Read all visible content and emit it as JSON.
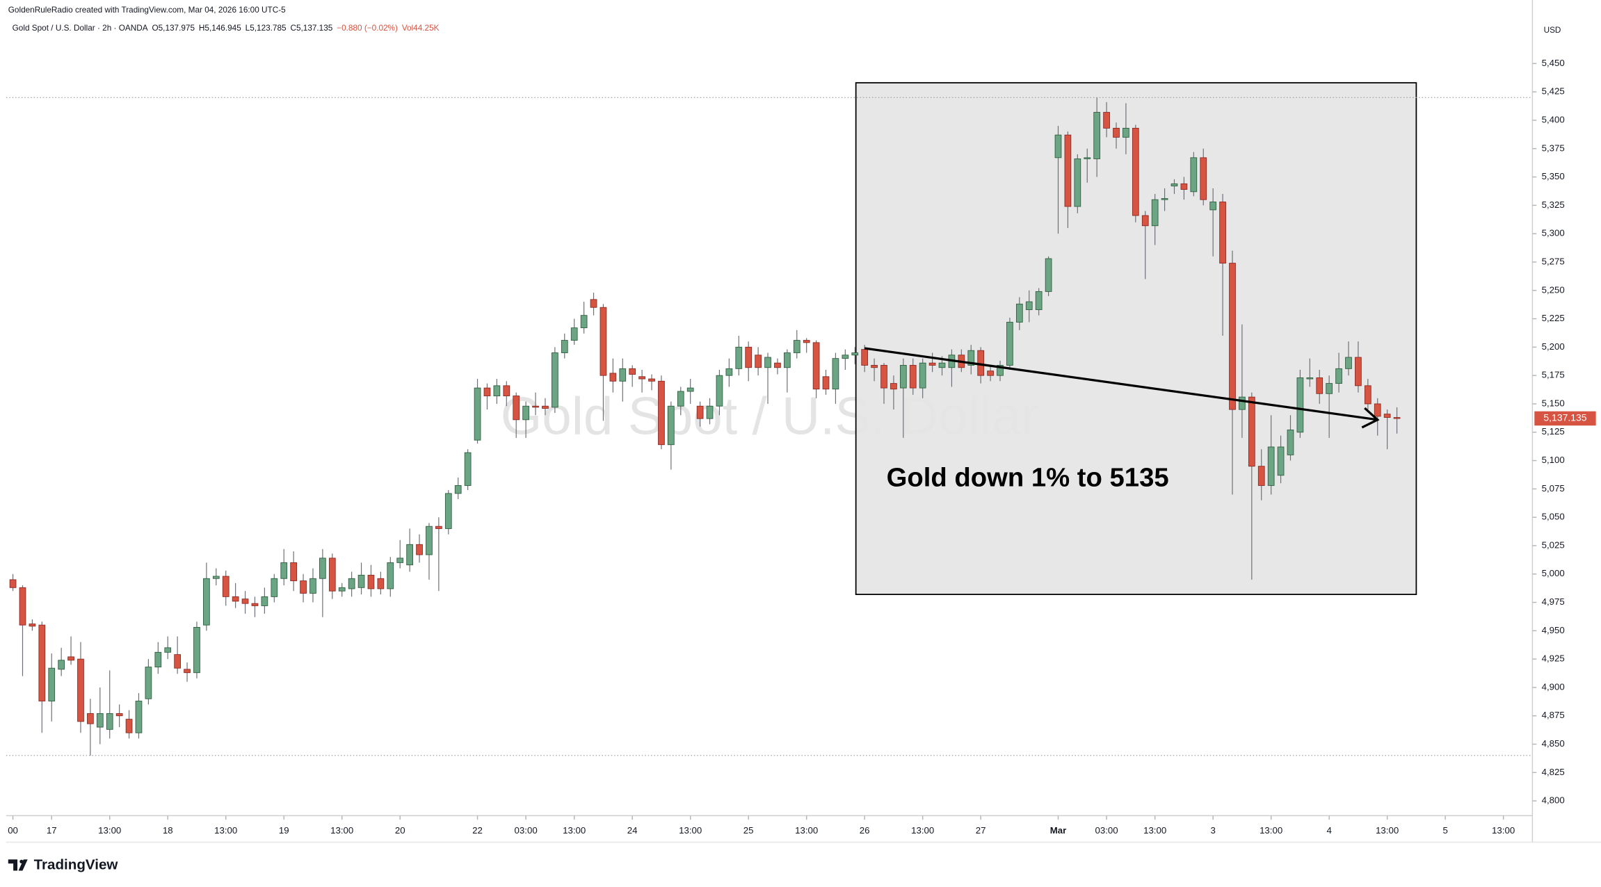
{
  "chart_data": {
    "type": "candlestick",
    "credit": "GoldenRuleRadio created with TradingView.com, Mar 04, 2026 16:00 UTC-5",
    "symbol": "Gold Spot / U.S. Dollar · 2h · OANDA",
    "ohlc_legend": [
      "O5,137.975",
      "H5,146.945",
      "L5,123.785",
      "C5,137.135",
      "−0.880 (−0.02%)",
      "Vol44.25K"
    ],
    "watermark": "Gold Spot / U.S. Dollar",
    "currency": "USD",
    "last_price_label": "5,137.135",
    "annotation": "Gold down 1% to 5135",
    "brand": "TradingView",
    "box": {
      "x": [
        87.1,
        145
      ],
      "y": [
        4982,
        5433
      ]
    },
    "arrow": {
      "x": [
        88,
        141
      ],
      "y": [
        5199,
        5136
      ]
    },
    "hlines": [
      5420,
      4840
    ],
    "up_color": "#6ba583",
    "down_color": "#d75442",
    "open": [
      4995,
      4988,
      4956,
      4955,
      4888,
      4916,
      4927,
      4925,
      4877,
      4865,
      4863,
      4877,
      4872,
      4860,
      4890,
      4918,
      4931,
      4929,
      4916,
      4913,
      4955,
      4996,
      4998,
      4980,
      4978,
      4974,
      4972,
      4980,
      4996,
      5010,
      4994,
      4983,
      4996,
      5014,
      4985,
      4987,
      4988,
      4999,
      4996,
      4987,
      5010,
      5008,
      5026,
      5017,
      5042,
      5040,
      5071,
      5078,
      5118,
      5164,
      5157,
      5166,
      5157,
      5136,
      5148,
      5148,
      5147,
      5195,
      5206,
      5217,
      5242,
      5235,
      5177,
      5170,
      5181,
      5174,
      5172,
      5170,
      5114,
      5148,
      5161,
      5148,
      5137,
      5148,
      5175,
      5181,
      5200,
      5193,
      5182,
      5186,
      5182,
      5195,
      5206,
      5204,
      5174,
      5163,
      5190,
      5193,
      5198,
      5184,
      5184,
      5168,
      5164,
      5184,
      5164,
      5186,
      5182,
      5182,
      5193,
      5184,
      5197,
      5179,
      5175,
      5184,
      5222,
      5233,
      5233,
      5249,
      5367,
      5387,
      5324,
      5366,
      5366,
      5407,
      5393,
      5385,
      5393,
      5316,
      5307,
      5330,
      5342,
      5344,
      5337,
      5367,
      5321,
      5328,
      5274,
      5145,
      5156,
      5095,
      5078,
      5087,
      5105,
      5125,
      5172,
      5173,
      5159,
      5168,
      5181,
      5191,
      5166,
      5150,
      5141,
      5137.975
    ],
    "high": [
      5000,
      4990,
      4960,
      4958,
      4930,
      4935,
      4945,
      4940,
      4890,
      4900,
      4915,
      4885,
      4880,
      4895,
      4925,
      4940,
      4945,
      4945,
      4922,
      4958,
      5010,
      5005,
      5003,
      4992,
      4985,
      4980,
      4988,
      5000,
      5022,
      5020,
      5000,
      5005,
      5022,
      5018,
      4992,
      5002,
      5010,
      5008,
      5002,
      5015,
      5030,
      5040,
      5035,
      5045,
      5050,
      5074,
      5085,
      5110,
      5172,
      5168,
      5172,
      5170,
      5160,
      5152,
      5160,
      5155,
      5200,
      5212,
      5225,
      5240,
      5248,
      5238,
      5190,
      5190,
      5184,
      5180,
      5176,
      5175,
      5152,
      5165,
      5172,
      5152,
      5155,
      5180,
      5190,
      5210,
      5205,
      5200,
      5195,
      5190,
      5198,
      5215,
      5208,
      5206,
      5180,
      5195,
      5198,
      5200,
      5202,
      5190,
      5186,
      5175,
      5190,
      5190,
      5190,
      5195,
      5192,
      5198,
      5198,
      5202,
      5200,
      5184,
      5188,
      5226,
      5244,
      5250,
      5252,
      5280,
      5395,
      5390,
      5370,
      5375,
      5420,
      5416,
      5398,
      5415,
      5396,
      5320,
      5335,
      5340,
      5348,
      5350,
      5372,
      5375,
      5340,
      5335,
      5285,
      5220,
      5160,
      5110,
      5140,
      5122,
      5140,
      5180,
      5190,
      5180,
      5175,
      5195,
      5205,
      5205,
      5172,
      5155,
      5145,
      5146.945
    ],
    "low": [
      4985,
      4910,
      4950,
      4860,
      4870,
      4910,
      4920,
      4860,
      4840,
      4850,
      4855,
      4865,
      4855,
      4855,
      4885,
      4912,
      4925,
      4912,
      4905,
      4908,
      4950,
      4990,
      4972,
      4970,
      4965,
      4962,
      4965,
      4975,
      4990,
      4985,
      4975,
      4975,
      4962,
      4978,
      4980,
      4980,
      4982,
      4980,
      4982,
      4980,
      5005,
      5002,
      5010,
      4995,
      4985,
      5035,
      5066,
      5074,
      5115,
      5145,
      5150,
      5148,
      5120,
      5120,
      5140,
      5140,
      5142,
      5190,
      5202,
      5212,
      5228,
      5135,
      5160,
      5152,
      5165,
      5160,
      5162,
      5110,
      5092,
      5140,
      5150,
      5130,
      5132,
      5140,
      5165,
      5175,
      5170,
      5175,
      5150,
      5176,
      5160,
      5190,
      5195,
      5155,
      5158,
      5150,
      5180,
      5185,
      5178,
      5170,
      5150,
      5145,
      5120,
      5158,
      5155,
      5178,
      5175,
      5165,
      5178,
      5176,
      5168,
      5170,
      5170,
      5180,
      5215,
      5222,
      5228,
      5245,
      5300,
      5305,
      5318,
      5345,
      5350,
      5385,
      5375,
      5370,
      5310,
      5260,
      5290,
      5320,
      5335,
      5330,
      5333,
      5325,
      5280,
      5210,
      5070,
      5120,
      4995,
      5065,
      5070,
      5080,
      5100,
      5120,
      5165,
      5150,
      5120,
      5160,
      5175,
      5160,
      5145,
      5122,
      5110,
      5123.785
    ],
    "close": [
      4988,
      4955,
      4954,
      4888,
      4917,
      4924,
      4924,
      4870,
      4868,
      4877,
      4877,
      4875,
      4860,
      4888,
      4918,
      4931,
      4935,
      4917,
      4913,
      4953,
      4996,
      4998,
      4980,
      4976,
      4974,
      4972,
      4980,
      4996,
      5010,
      4994,
      4983,
      4996,
      5014,
      4985,
      4988,
      4996,
      4999,
      4987,
      4987,
      5010,
      5014,
      5026,
      5017,
      5042,
      5040,
      5071,
      5078,
      5107,
      5164,
      5157,
      5166,
      5157,
      5136,
      5148,
      5147,
      5146,
      5195,
      5206,
      5217,
      5228,
      5235,
      5175,
      5170,
      5181,
      5176,
      5172,
      5170,
      5114,
      5148,
      5161,
      5164,
      5137,
      5148,
      5175,
      5181,
      5200,
      5182,
      5182,
      5191,
      5182,
      5195,
      5206,
      5204,
      5163,
      5163,
      5190,
      5193,
      5195,
      5184,
      5182,
      5164,
      5163,
      5184,
      5164,
      5186,
      5184,
      5186,
      5193,
      5182,
      5197,
      5175,
      5175,
      5184,
      5222,
      5238,
      5240,
      5249,
      5278,
      5387,
      5324,
      5366,
      5367,
      5407,
      5393,
      5385,
      5393,
      5316,
      5307,
      5330,
      5331,
      5344,
      5339,
      5367,
      5330,
      5328,
      5274,
      5145,
      5156,
      5095,
      5078,
      5112,
      5112,
      5127,
      5173,
      5173,
      5159,
      5168,
      5181,
      5191,
      5166,
      5150,
      5139,
      5138,
      5137.135
    ],
    "xlim": [
      -0.7,
      157
    ],
    "xticks": [
      {
        "value": 0,
        "label": "00"
      },
      {
        "value": 4,
        "label": "17"
      },
      {
        "value": 10,
        "label": "13:00"
      },
      {
        "value": 16,
        "label": "18"
      },
      {
        "value": 22,
        "label": "13:00"
      },
      {
        "value": 28,
        "label": "19"
      },
      {
        "value": 34,
        "label": "13:00"
      },
      {
        "value": 40,
        "label": "20"
      },
      {
        "value": 48,
        "label": "22"
      },
      {
        "value": 53,
        "label": "03:00"
      },
      {
        "value": 58,
        "label": "13:00"
      },
      {
        "value": 64,
        "label": "24"
      },
      {
        "value": 70,
        "label": "13:00"
      },
      {
        "value": 76,
        "label": "25"
      },
      {
        "value": 82,
        "label": "13:00"
      },
      {
        "value": 88,
        "label": "26"
      },
      {
        "value": 94,
        "label": "13:00"
      },
      {
        "value": 100,
        "label": "27"
      },
      {
        "value": 108,
        "label": "Mar"
      },
      {
        "value": 113,
        "label": "03:00"
      },
      {
        "value": 118,
        "label": "13:00"
      },
      {
        "value": 124,
        "label": "3"
      },
      {
        "value": 130,
        "label": "13:00"
      },
      {
        "value": 136,
        "label": "4"
      },
      {
        "value": 142,
        "label": "13:00"
      },
      {
        "value": 148,
        "label": "5"
      },
      {
        "value": 154,
        "label": "13:00"
      }
    ],
    "ylim": [
      4787,
      5506
    ],
    "yticks": [
      {
        "value": 4800,
        "label": "4,800"
      },
      {
        "value": 4825,
        "label": "4,825"
      },
      {
        "value": 4850,
        "label": "4,850"
      },
      {
        "value": 4875,
        "label": "4,875"
      },
      {
        "value": 4900,
        "label": "4,900"
      },
      {
        "value": 4925,
        "label": "4,925"
      },
      {
        "value": 4950,
        "label": "4,950"
      },
      {
        "value": 4975,
        "label": "4,975"
      },
      {
        "value": 5000,
        "label": "5,000"
      },
      {
        "value": 5025,
        "label": "5,025"
      },
      {
        "value": 5050,
        "label": "5,050"
      },
      {
        "value": 5075,
        "label": "5,075"
      },
      {
        "value": 5100,
        "label": "5,100"
      },
      {
        "value": 5125,
        "label": "5,125"
      },
      {
        "value": 5150,
        "label": "5,150"
      },
      {
        "value": 5175,
        "label": "5,175"
      },
      {
        "value": 5200,
        "label": "5,200"
      },
      {
        "value": 5225,
        "label": "5,225"
      },
      {
        "value": 5250,
        "label": "5,250"
      },
      {
        "value": 5275,
        "label": "5,275"
      },
      {
        "value": 5300,
        "label": "5,300"
      },
      {
        "value": 5325,
        "label": "5,325"
      },
      {
        "value": 5350,
        "label": "5,350"
      },
      {
        "value": 5375,
        "label": "5,375"
      },
      {
        "value": 5400,
        "label": "5,400"
      },
      {
        "value": 5425,
        "label": "5,425"
      },
      {
        "value": 5450,
        "label": "5,450"
      }
    ]
  }
}
